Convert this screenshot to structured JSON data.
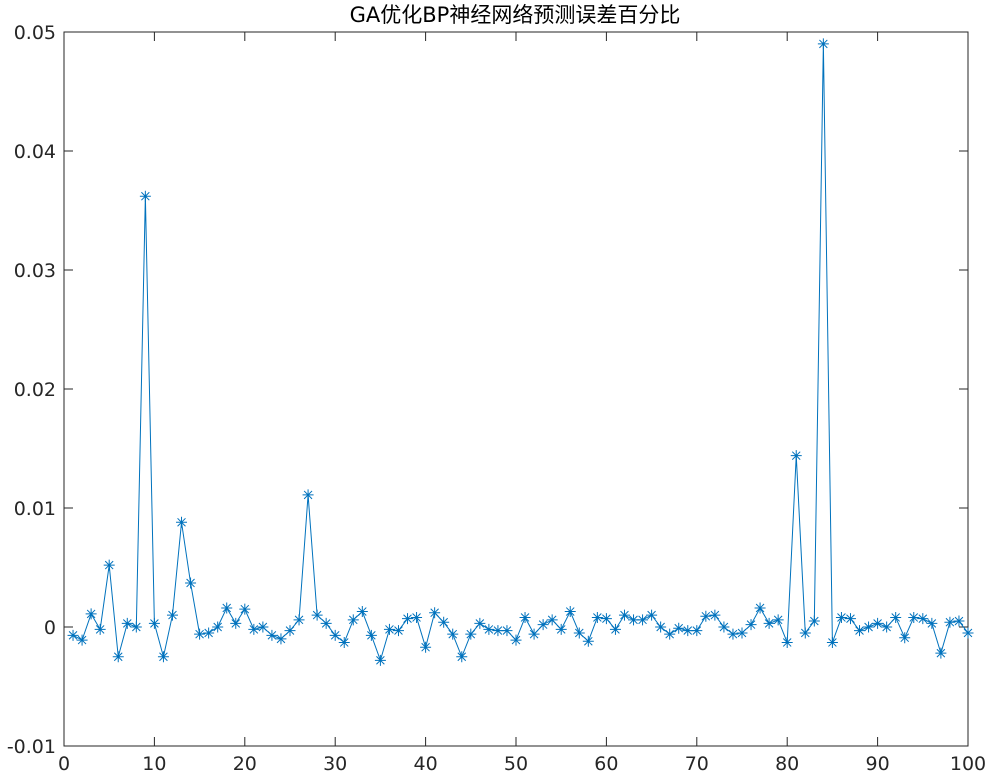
{
  "chart_data": {
    "type": "line",
    "title": "GA优化BP神经网络预测误差百分比",
    "xlabel": "",
    "ylabel": "",
    "xlim": [
      0,
      100
    ],
    "ylim": [
      -0.01,
      0.05
    ],
    "xticks": [
      0,
      10,
      20,
      30,
      40,
      50,
      60,
      70,
      80,
      90,
      100
    ],
    "xtick_labels": [
      "0",
      "10",
      "20",
      "30",
      "40",
      "50",
      "60",
      "70",
      "80",
      "90",
      "100"
    ],
    "yticks": [
      -0.01,
      0,
      0.01,
      0.02,
      0.03,
      0.04,
      0.05
    ],
    "ytick_labels": [
      "-0.01",
      "0",
      "0.01",
      "0.02",
      "0.03",
      "0.04",
      "0.05"
    ],
    "grid": false,
    "marker": "asterisk",
    "line_color": "#0072BD",
    "series": [
      {
        "x": [
          1,
          2,
          3,
          4,
          5,
          6,
          7,
          8,
          9,
          10,
          11,
          12,
          13,
          14,
          15,
          16,
          17,
          18,
          19,
          20,
          21,
          22,
          23,
          24,
          25,
          26,
          27,
          28,
          29,
          30,
          31,
          32,
          33,
          34,
          35,
          36,
          37,
          38,
          39,
          40,
          41,
          42,
          43,
          44,
          45,
          46,
          47,
          48,
          49,
          50,
          51,
          52,
          53,
          54,
          55,
          56,
          57,
          58,
          59,
          60,
          61,
          62,
          63,
          64,
          65,
          66,
          67,
          68,
          69,
          70,
          71,
          72,
          73,
          74,
          75,
          76,
          77,
          78,
          79,
          80,
          81,
          82,
          83,
          84,
          85,
          86,
          87,
          88,
          89,
          90,
          91,
          92,
          93,
          94,
          95,
          96,
          97,
          98,
          99,
          100
        ],
        "values": [
          -0.0007,
          -0.0011,
          0.0011,
          -0.0002,
          0.0052,
          -0.0025,
          0.0003,
          0.0,
          0.0362,
          0.0003,
          -0.0025,
          0.001,
          0.0088,
          0.0037,
          -0.0006,
          -0.0005,
          0.0,
          0.0016,
          0.0003,
          0.0015,
          -0.0002,
          0.0,
          -0.0007,
          -0.001,
          -0.0003,
          0.0006,
          0.0111,
          0.001,
          0.0003,
          -0.0007,
          -0.0013,
          0.0006,
          0.0013,
          -0.0007,
          -0.0028,
          -0.0002,
          -0.0003,
          0.0007,
          0.0008,
          -0.0017,
          0.0012,
          0.0004,
          -0.0006,
          -0.0025,
          -0.0006,
          0.0003,
          -0.0002,
          -0.0003,
          -0.0003,
          -0.0011,
          0.0008,
          -0.0006,
          0.0002,
          0.0006,
          -0.0002,
          0.0013,
          -0.0005,
          -0.0012,
          0.0008,
          0.0007,
          -0.0002,
          0.001,
          0.0006,
          0.0006,
          0.001,
          0.0,
          -0.0006,
          -0.0001,
          -0.0003,
          -0.0003,
          0.0009,
          0.001,
          0.0,
          -0.0006,
          -0.0005,
          0.0002,
          0.0016,
          0.0003,
          0.0006,
          -0.0013,
          0.0144,
          -0.0005,
          0.0005,
          0.049,
          -0.0013,
          0.0008,
          0.0007,
          -0.0003,
          0.0,
          0.0003,
          0.0,
          0.0008,
          -0.0009,
          0.0008,
          0.0007,
          0.0003,
          -0.0022,
          0.0004,
          0.0005,
          -0.0005
        ]
      }
    ]
  }
}
